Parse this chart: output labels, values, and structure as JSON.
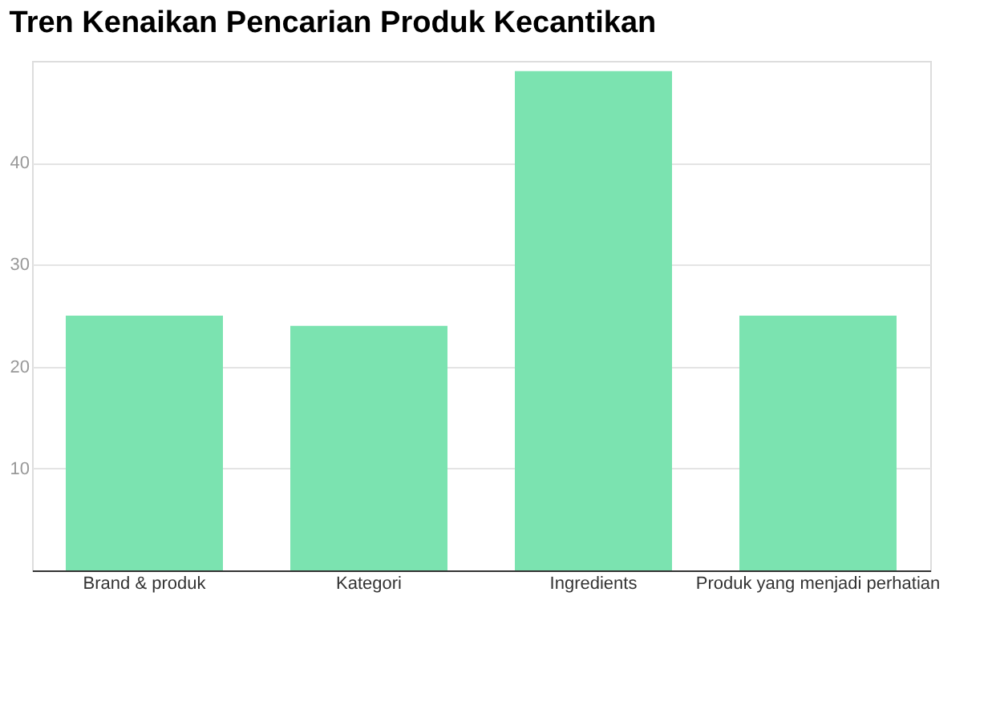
{
  "chart_data": {
    "type": "bar",
    "title": "Tren Kenaikan Pencarian Produk Kecantikan",
    "categories": [
      "Brand & produk",
      "Kategori",
      "Ingredients",
      "Produk yang menjadi perhatian"
    ],
    "values": [
      25,
      24,
      49,
      25
    ],
    "color": "#7be3b0",
    "ylim": [
      0,
      50
    ],
    "yticks": [
      10,
      20,
      30,
      40
    ],
    "grid": "y"
  }
}
